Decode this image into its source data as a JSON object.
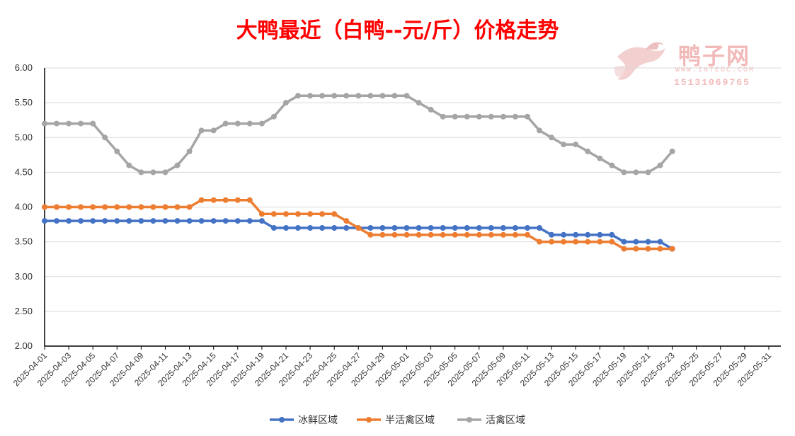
{
  "chart_data": {
    "type": "line",
    "title": "大鸭最近（白鸭--元/斤）价格走势",
    "ylim": [
      2.0,
      6.0
    ],
    "yticks": [
      "2.00",
      "2.50",
      "3.00",
      "3.50",
      "4.00",
      "4.50",
      "5.00",
      "5.50",
      "6.00"
    ],
    "xlim": [
      "2025-04-01",
      "2025-06-01"
    ],
    "xticks": [
      "2025-04-01",
      "2025-04-03",
      "2025-04-05",
      "2025-04-07",
      "2025-04-09",
      "2025-04-11",
      "2025-04-13",
      "2025-04-15",
      "2025-04-17",
      "2025-04-19",
      "2025-04-21",
      "2025-04-23",
      "2025-04-25",
      "2025-04-27",
      "2025-04-29",
      "2025-05-01",
      "2025-05-03",
      "2025-05-05",
      "2025-05-07",
      "2025-05-09",
      "2025-05-11",
      "2025-05-13",
      "2025-05-15",
      "2025-05-17",
      "2025-05-19",
      "2025-05-21",
      "2025-05-23",
      "2025-05-25",
      "2025-05-27",
      "2025-05-29",
      "2025-05-31"
    ],
    "grid": true,
    "legend_position": "bottom",
    "series": [
      {
        "name": "冰鲜区域",
        "color": "#4472c4",
        "x": [
          "2025-04-01",
          "2025-04-02",
          "2025-04-03",
          "2025-04-04",
          "2025-04-05",
          "2025-04-06",
          "2025-04-07",
          "2025-04-08",
          "2025-04-09",
          "2025-04-10",
          "2025-04-11",
          "2025-04-12",
          "2025-04-13",
          "2025-04-14",
          "2025-04-15",
          "2025-04-16",
          "2025-04-17",
          "2025-04-18",
          "2025-04-19",
          "2025-04-20",
          "2025-04-21",
          "2025-04-22",
          "2025-04-23",
          "2025-04-24",
          "2025-04-25",
          "2025-04-26",
          "2025-04-27",
          "2025-04-28",
          "2025-04-29",
          "2025-04-30",
          "2025-05-01",
          "2025-05-02",
          "2025-05-03",
          "2025-05-04",
          "2025-05-05",
          "2025-05-06",
          "2025-05-07",
          "2025-05-08",
          "2025-05-09",
          "2025-05-10",
          "2025-05-11",
          "2025-05-12",
          "2025-05-13",
          "2025-05-14",
          "2025-05-15",
          "2025-05-16",
          "2025-05-17",
          "2025-05-18",
          "2025-05-19",
          "2025-05-20",
          "2025-05-21",
          "2025-05-22",
          "2025-05-23"
        ],
        "values": [
          3.8,
          3.8,
          3.8,
          3.8,
          3.8,
          3.8,
          3.8,
          3.8,
          3.8,
          3.8,
          3.8,
          3.8,
          3.8,
          3.8,
          3.8,
          3.8,
          3.8,
          3.8,
          3.8,
          3.7,
          3.7,
          3.7,
          3.7,
          3.7,
          3.7,
          3.7,
          3.7,
          3.7,
          3.7,
          3.7,
          3.7,
          3.7,
          3.7,
          3.7,
          3.7,
          3.7,
          3.7,
          3.7,
          3.7,
          3.7,
          3.7,
          3.7,
          3.6,
          3.6,
          3.6,
          3.6,
          3.6,
          3.6,
          3.5,
          3.5,
          3.5,
          3.5,
          3.4
        ]
      },
      {
        "name": "半活禽区域",
        "color": "#ed7d31",
        "x": [
          "2025-04-01",
          "2025-04-02",
          "2025-04-03",
          "2025-04-04",
          "2025-04-05",
          "2025-04-06",
          "2025-04-07",
          "2025-04-08",
          "2025-04-09",
          "2025-04-10",
          "2025-04-11",
          "2025-04-12",
          "2025-04-13",
          "2025-04-14",
          "2025-04-15",
          "2025-04-16",
          "2025-04-17",
          "2025-04-18",
          "2025-04-19",
          "2025-04-20",
          "2025-04-21",
          "2025-04-22",
          "2025-04-23",
          "2025-04-24",
          "2025-04-25",
          "2025-04-26",
          "2025-04-27",
          "2025-04-28",
          "2025-04-29",
          "2025-04-30",
          "2025-05-01",
          "2025-05-02",
          "2025-05-03",
          "2025-05-04",
          "2025-05-05",
          "2025-05-06",
          "2025-05-07",
          "2025-05-08",
          "2025-05-09",
          "2025-05-10",
          "2025-05-11",
          "2025-05-12",
          "2025-05-13",
          "2025-05-14",
          "2025-05-15",
          "2025-05-16",
          "2025-05-17",
          "2025-05-18",
          "2025-05-19",
          "2025-05-20",
          "2025-05-21",
          "2025-05-22",
          "2025-05-23"
        ],
        "values": [
          4.0,
          4.0,
          4.0,
          4.0,
          4.0,
          4.0,
          4.0,
          4.0,
          4.0,
          4.0,
          4.0,
          4.0,
          4.0,
          4.1,
          4.1,
          4.1,
          4.1,
          4.1,
          3.9,
          3.9,
          3.9,
          3.9,
          3.9,
          3.9,
          3.9,
          3.8,
          3.7,
          3.6,
          3.6,
          3.6,
          3.6,
          3.6,
          3.6,
          3.6,
          3.6,
          3.6,
          3.6,
          3.6,
          3.6,
          3.6,
          3.6,
          3.5,
          3.5,
          3.5,
          3.5,
          3.5,
          3.5,
          3.5,
          3.4,
          3.4,
          3.4,
          3.4,
          3.4
        ]
      },
      {
        "name": "活禽区域",
        "color": "#a5a5a5",
        "x": [
          "2025-04-01",
          "2025-04-02",
          "2025-04-03",
          "2025-04-04",
          "2025-04-05",
          "2025-04-06",
          "2025-04-07",
          "2025-04-08",
          "2025-04-09",
          "2025-04-10",
          "2025-04-11",
          "2025-04-12",
          "2025-04-13",
          "2025-04-14",
          "2025-04-15",
          "2025-04-16",
          "2025-04-17",
          "2025-04-18",
          "2025-04-19",
          "2025-04-20",
          "2025-04-21",
          "2025-04-22",
          "2025-04-23",
          "2025-04-24",
          "2025-04-25",
          "2025-04-26",
          "2025-04-27",
          "2025-04-28",
          "2025-04-29",
          "2025-04-30",
          "2025-05-01",
          "2025-05-02",
          "2025-05-03",
          "2025-05-04",
          "2025-05-05",
          "2025-05-06",
          "2025-05-07",
          "2025-05-08",
          "2025-05-09",
          "2025-05-10",
          "2025-05-11",
          "2025-05-12",
          "2025-05-13",
          "2025-05-14",
          "2025-05-15",
          "2025-05-16",
          "2025-05-17",
          "2025-05-18",
          "2025-05-19",
          "2025-05-20",
          "2025-05-21",
          "2025-05-22",
          "2025-05-23"
        ],
        "values": [
          5.2,
          5.2,
          5.2,
          5.2,
          5.2,
          5.0,
          4.8,
          4.6,
          4.5,
          4.5,
          4.5,
          4.6,
          4.8,
          5.1,
          5.1,
          5.2,
          5.2,
          5.2,
          5.2,
          5.3,
          5.5,
          5.6,
          5.6,
          5.6,
          5.6,
          5.6,
          5.6,
          5.6,
          5.6,
          5.6,
          5.6,
          5.5,
          5.4,
          5.3,
          5.3,
          5.3,
          5.3,
          5.3,
          5.3,
          5.3,
          5.3,
          5.1,
          5.0,
          4.9,
          4.9,
          4.8,
          4.7,
          4.6,
          4.5,
          4.5,
          4.5,
          4.6,
          4.8
        ]
      }
    ]
  },
  "watermark": {
    "name": "鸭子网",
    "url": "WWW.INTEDC.COM",
    "phone": "15131069765",
    "icon": "duck-logo-icon"
  }
}
